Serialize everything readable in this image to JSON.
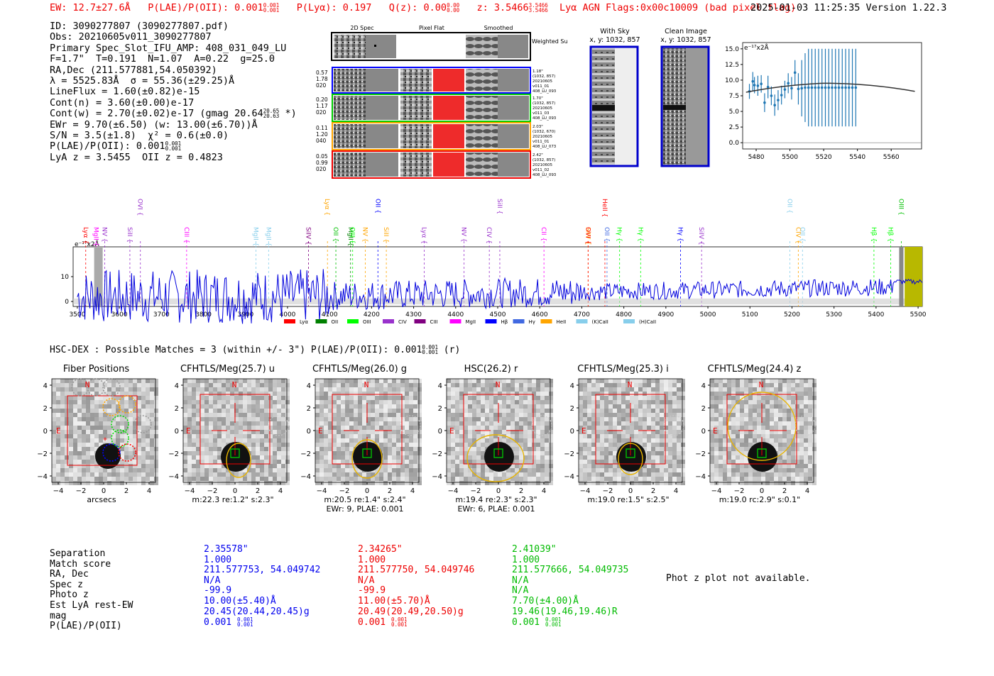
{
  "header": {
    "ew": "EW: 12.7±27.6Å",
    "plae_label": "P(LAE)/P(OII): 0.001",
    "plae_hi": "0.001",
    "plae_lo": "0.001",
    "plya": "P(Lyα): 0.197",
    "qz_label": "Q(z): 0.00",
    "qz_hi": "0.00",
    "qz_lo": "0.00",
    "z_label": "z: 3.5466",
    "z_hi": "3.5466",
    "z_lo": "3.5466",
    "line": "Lyα  AGN  Flags:0x00c10009  (bad pixel flag)",
    "timestamp": "2025-01-03 11:25:35  Version 1.22.3"
  },
  "info": {
    "id": "ID: 3090277807 (3090277807.pdf)",
    "obs": "Obs: 20210605v011_3090277807",
    "primary": "Primary Spec_Slot_IFU_AMP: 408_031_049_LU",
    "fwhm": "F=1.7\"  T=0.191  N=1.07  A=0.22  g=25.0",
    "radec": "RA,Dec (211.577881,54.050392)",
    "lambda": "λ = 5525.83Å  σ = 55.36(±29.25)Å",
    "lineflux": "LineFlux = 1.60(±0.82)e-15",
    "contn": "Cont(n) = 3.60(±0.00)e-17",
    "contw": "Cont(w) = 2.70(±0.02)e-17 (gmag 20.64",
    "gmag_hi": "20.65",
    "gmag_lo": "20.63",
    "contw_end": " *)",
    "ewr": "EWr = 9.70(±6.50) (w: 13.00(±6.70))Å",
    "sn": "S/N = 3.5(±1.8)  χ² = 0.6(±0.0)",
    "plae": "P(LAE)/P(OII): 0.001",
    "plae_hi": "0.001",
    "plae_lo": "0.001",
    "lya_z": "LyA z = 3.5455  OII z = 0.4823"
  },
  "cutouts2d": {
    "col_titles": [
      "2D Spec",
      "Pixel Flat",
      "Smoothed"
    ],
    "weighted": "Weighted Sum",
    "rows": [
      {
        "vals": [
          "0.57",
          "1.78",
          "020"
        ],
        "side": [
          "1.18\"",
          "(1032, 857)",
          "20210605",
          "v011_01",
          "408_LU_093"
        ]
      },
      {
        "vals": [
          "0.20",
          "1.17",
          "020"
        ],
        "side": [
          "1.70\"",
          "(1032, 857)",
          "20210605",
          "v011_03",
          "408_LU_093"
        ]
      },
      {
        "vals": [
          "0.11",
          "1.20",
          "040"
        ],
        "side": [
          "2.03\"",
          "(1032, 670)",
          "20210605",
          "v011_01",
          "408_LU_073"
        ]
      },
      {
        "vals": [
          "0.05",
          "0.99",
          "020"
        ],
        "side": [
          "2.42\"",
          "(1032, 857)",
          "20210605",
          "v011_02",
          "408_LU_093"
        ]
      }
    ],
    "with_sky": [
      "With Sky",
      "x, y: 1032, 857"
    ],
    "clean": [
      "Clean Image",
      "x, y: 1032, 857"
    ]
  },
  "fit_chart": {
    "ylabel": "e⁻¹⁷x2Å",
    "x_ticks": [
      "5480",
      "5500",
      "5520",
      "5540",
      "5560"
    ],
    "y_ticks": [
      "0.0",
      "2.5",
      "5.0",
      "7.5",
      "10.0",
      "12.5",
      "15.0"
    ]
  },
  "spectrum": {
    "ylabel": "e⁻¹⁷x2Å",
    "y_ticks": [
      "0",
      "10"
    ],
    "x_ticks": [
      "3500",
      "3600",
      "3700",
      "3800",
      "3900",
      "4000",
      "4100",
      "4200",
      "4300",
      "4400",
      "4500",
      "4600",
      "4700",
      "4800",
      "4900",
      "5000",
      "5100",
      "5200",
      "5300",
      "5400",
      "5500"
    ],
    "legend": [
      {
        "label": "Lyα",
        "color": "#ff0000"
      },
      {
        "label": "OII",
        "color": "#008000"
      },
      {
        "label": "OIII",
        "color": "#00ff00"
      },
      {
        "label": "CIV",
        "color": "#9932cc"
      },
      {
        "label": "CIII",
        "color": "#800080"
      },
      {
        "label": "MgII",
        "color": "#ff00ff"
      },
      {
        "label": "Hβ",
        "color": "#0000ff"
      },
      {
        "label": "Hγ",
        "color": "#4169e1"
      },
      {
        "label": "HeII",
        "color": "#ffa500"
      },
      {
        "label": "(K)CaII",
        "color": "#87ceeb"
      },
      {
        "label": "(H)CaII",
        "color": "#87ceeb"
      }
    ],
    "line_marks": [
      {
        "label": "Lyα",
        "color": "#ff0000",
        "w": 3520
      },
      {
        "label": "MgII",
        "color": "#ff00ff",
        "w": 3545
      },
      {
        "label": "NV",
        "color": "#9932cc",
        "w": 3565
      },
      {
        "label": "SiII",
        "color": "#9932cc",
        "w": 3625
      },
      {
        "label": "OVI",
        "color": "#9932cc",
        "w": 3650
      },
      {
        "label": "CIII",
        "color": "#ff00ff",
        "w": 3760
      },
      {
        "label": "MgII",
        "color": "#87ceeb",
        "w": 3925
      },
      {
        "label": "MgII",
        "color": "#87ceeb",
        "w": 3955
      },
      {
        "label": "SiIV",
        "color": "#800080",
        "w": 4050
      },
      {
        "label": "Lyα",
        "color": "#ffa500",
        "w": 4095
      },
      {
        "label": "OII",
        "color": "#00c000",
        "w": 4115
      },
      {
        "label": "MgII",
        "color": "#008000",
        "w": 4150
      },
      {
        "label": "OIII",
        "color": "#00ff00",
        "w": 4155
      },
      {
        "label": "NV",
        "color": "#ffa500",
        "w": 4185
      },
      {
        "label": "OII",
        "color": "#0000ff",
        "w": 4215
      },
      {
        "label": "SiII",
        "color": "#ffa500",
        "w": 4235
      },
      {
        "label": "Lyα",
        "color": "#9932cc",
        "w": 4325
      },
      {
        "label": "NV",
        "color": "#9932cc",
        "w": 4420
      },
      {
        "label": "CIV",
        "color": "#9932cc",
        "w": 4480
      },
      {
        "label": "SiII",
        "color": "#9932cc",
        "w": 4505
      },
      {
        "label": "CII",
        "color": "#ff00ff",
        "w": 4610
      },
      {
        "label": "SiIV",
        "color": "#ffa500",
        "w": 4715
      },
      {
        "label": "OVI",
        "color": "#ff0000",
        "w": 4715
      },
      {
        "label": "OII",
        "color": "#4169e1",
        "w": 4760
      },
      {
        "label": "HeII",
        "color": "#ff0000",
        "w": 4755
      },
      {
        "label": "Hγ",
        "color": "#00ff00",
        "w": 4790
      },
      {
        "label": "Hγ",
        "color": "#00ff00",
        "w": 4840
      },
      {
        "label": "Hγ",
        "color": "#0000ff",
        "w": 4935
      },
      {
        "label": "SiIV",
        "color": "#9932cc",
        "w": 4985
      },
      {
        "label": "OII",
        "color": "#87ceeb",
        "w": 5195
      },
      {
        "label": "CIV",
        "color": "#ffa500",
        "w": 5215
      },
      {
        "label": "OII",
        "color": "#87ceeb",
        "w": 5225
      },
      {
        "label": "Hβ",
        "color": "#00ff00",
        "w": 5395
      },
      {
        "label": "Hβ",
        "color": "#00ff00",
        "w": 5435
      },
      {
        "label": "OIII",
        "color": "#00c000",
        "w": 5460
      }
    ]
  },
  "hsc": {
    "title": "HSC-DEX : Possible Matches = 3 (within +/- 3\")  P(LAE)/P(OII): 0.001",
    "plae_hi": "0.001",
    "plae_lo": "0.001",
    "suffix": " (r)"
  },
  "cutouts": [
    {
      "title": "Fiber Positions",
      "cap1": "arcsecs",
      "cap2": ""
    },
    {
      "title": "CFHTLS/Meg(25.7) u",
      "cap1": "m:22.3  re:1.2\"  s:2.3\"",
      "cap2": ""
    },
    {
      "title": "CFHTLS/Meg(26.0) g",
      "cap1": "m:20.5  re:1.4\"  s:2.4\"",
      "cap2": "EWr: 9, PLAE: 0.001"
    },
    {
      "title": "HSC(26.2) r",
      "cap1": "m:19.4  re:2.3\"  s:2.3\"",
      "cap2": "EWr: 6, PLAE: 0.001"
    },
    {
      "title": "CFHTLS/Meg(25.3) i",
      "cap1": "m:19.0  re:1.5\"  s:2.5\"",
      "cap2": ""
    },
    {
      "title": "CFHTLS/Meg(24.4) z",
      "cap1": "m:19.0  rc:2.9\"  s:0.1\"",
      "cap2": ""
    }
  ],
  "cut_axis": {
    "ticks": [
      "4",
      "2",
      "0",
      "−2",
      "−4"
    ],
    "xticks": [
      "−4",
      "−2",
      "0",
      "2",
      "4"
    ],
    "north": "N",
    "east": "E"
  },
  "matches": {
    "labels": [
      "Separation",
      "Match score",
      "RA, Dec",
      "Spec z",
      "Photo z",
      "Est LyA rest-EW",
      "mag",
      "P(LAE)/P(OII)"
    ],
    "cols": [
      {
        "color": "#0000ee",
        "rows": [
          "2.35578\"",
          "1.000",
          "211.577753, 54.049742",
          "N/A",
          "-99.9",
          "10.00(±5.40)Å",
          "20.45(20.44,20.45)g",
          "0.001"
        ],
        "plae_hi": "0.001",
        "plae_lo": "0.001"
      },
      {
        "color": "#ee0000",
        "rows": [
          "2.34265\"",
          "1.000",
          "211.577750, 54.049746",
          "N/A",
          "-99.9",
          "11.00(±5.70)Å",
          "20.49(20.49,20.50)g",
          "0.001"
        ],
        "plae_hi": "0.001",
        "plae_lo": "0.001"
      },
      {
        "color": "#00bb00",
        "rows": [
          "2.41039\"",
          "1.000",
          "211.577666, 54.049735",
          "N/A",
          "N/A",
          "7.70(±4.00)Å",
          "19.46(19.46,19.46)R",
          "0.001"
        ],
        "plae_hi": "0.001",
        "plae_lo": "0.001"
      }
    ],
    "photz_note": "Phot z plot not available."
  }
}
